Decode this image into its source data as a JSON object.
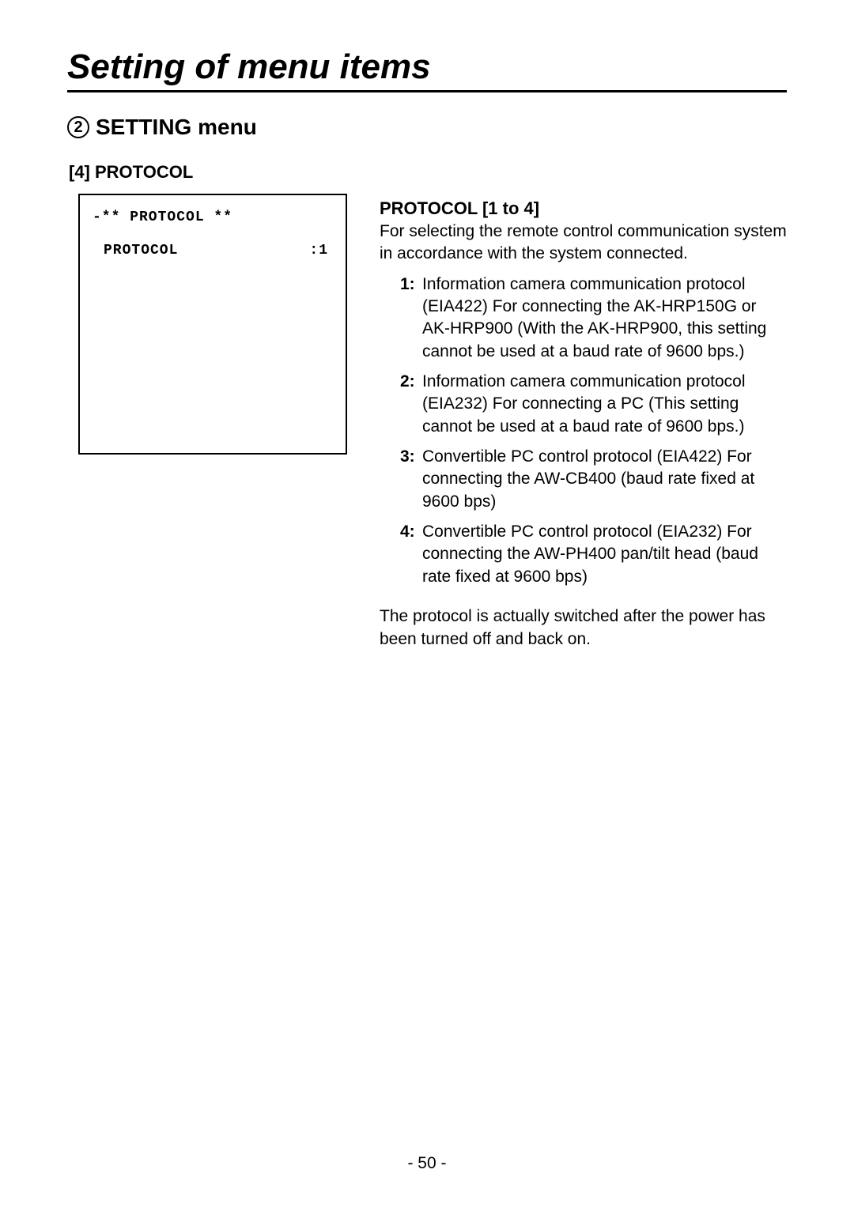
{
  "page": {
    "main_title": "Setting of menu items",
    "section_number": "2",
    "section_title": "SETTING menu",
    "subsection_title": "[4] PROTOCOL",
    "page_number": "- 50 -"
  },
  "menu_box": {
    "header": "-**  PROTOCOL **",
    "row_label": "PROTOCOL",
    "row_value": ":1"
  },
  "param": {
    "title": "PROTOCOL [1 to 4]",
    "description": "For selecting the remote control communication system in accordance with the system connected.",
    "options": [
      {
        "num": "1:",
        "text": "Information camera communication protocol (EIA422)\nFor connecting the AK-HRP150G or AK-HRP900\n(With the AK-HRP900, this setting cannot be used at a baud rate of 9600 bps.)"
      },
      {
        "num": "2:",
        "text": "Information camera communication protocol (EIA232)\nFor connecting a PC\n(This setting cannot be used at a baud rate of 9600 bps.)"
      },
      {
        "num": "3:",
        "text": "Convertible PC control protocol (EIA422)\nFor connecting the AW-CB400 (baud rate fixed at 9600 bps)"
      },
      {
        "num": "4:",
        "text": "Convertible PC control protocol (EIA232) For connecting the AW-PH400 pan/tilt head (baud rate fixed at 9600 bps)"
      }
    ],
    "footer_note": "The protocol is actually switched after the power has been turned off and back on."
  }
}
